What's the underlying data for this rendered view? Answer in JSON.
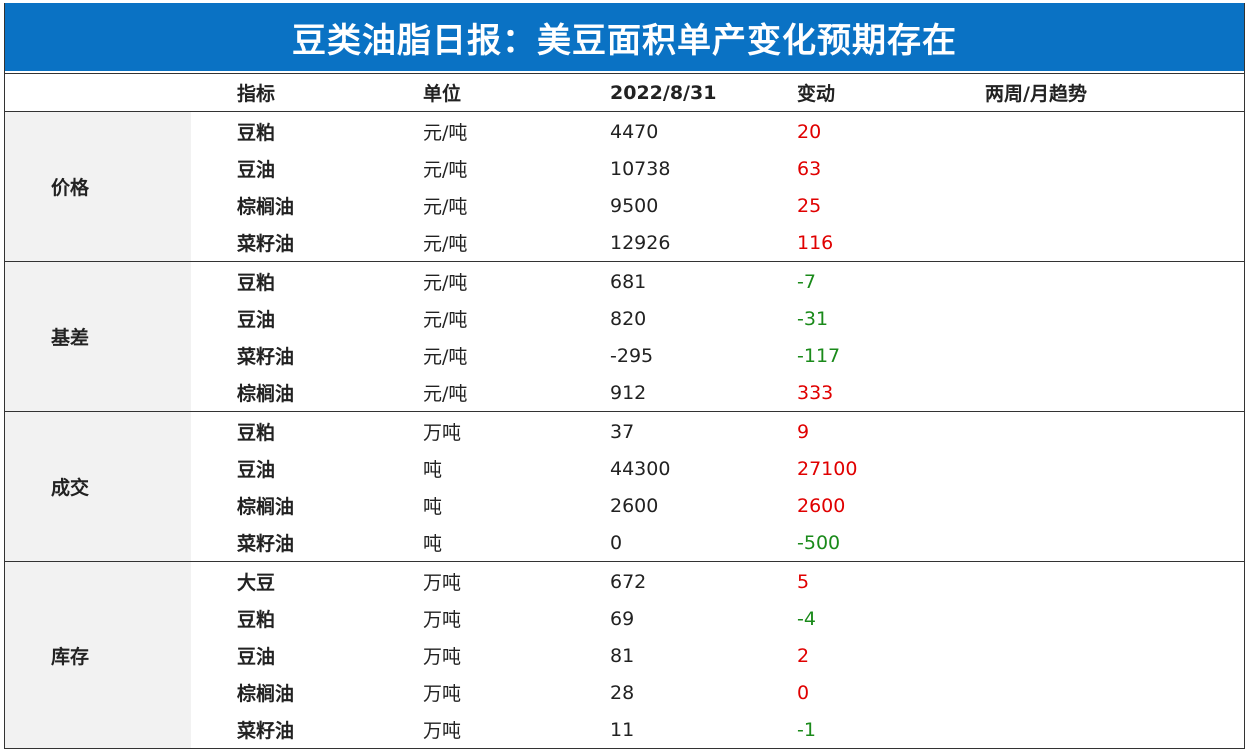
{
  "title": "豆类油脂日报：美豆面积单产变化预期存在",
  "colors": {
    "title_bg": "#0a72c4",
    "up": "#e00000",
    "down": "#1a8a1a",
    "label_bg": "#f2f2f2"
  },
  "headers": {
    "indicator": "指标",
    "unit": "单位",
    "date": "2022/8/31",
    "change": "变动",
    "trend": "两周/月趋势"
  },
  "groups": [
    {
      "label": "价格",
      "rows": [
        {
          "name": "豆粕",
          "unit": "元/吨",
          "value": "4470",
          "change": "20",
          "dir": "up"
        },
        {
          "name": "豆油",
          "unit": "元/吨",
          "value": "10738",
          "change": "63",
          "dir": "up"
        },
        {
          "name": "棕榈油",
          "unit": "元/吨",
          "value": "9500",
          "change": "25",
          "dir": "up"
        },
        {
          "name": "菜籽油",
          "unit": "元/吨",
          "value": "12926",
          "change": "116",
          "dir": "up"
        }
      ]
    },
    {
      "label": "基差",
      "rows": [
        {
          "name": "豆粕",
          "unit": "元/吨",
          "value": "681",
          "change": "-7",
          "dir": "down"
        },
        {
          "name": "豆油",
          "unit": "元/吨",
          "value": "820",
          "change": "-31",
          "dir": "down"
        },
        {
          "name": "菜籽油",
          "unit": "元/吨",
          "value": "-295",
          "change": "-117",
          "dir": "down"
        },
        {
          "name": "棕榈油",
          "unit": "元/吨",
          "value": "912",
          "change": "333",
          "dir": "up"
        }
      ]
    },
    {
      "label": "成交",
      "rows": [
        {
          "name": "豆粕",
          "unit": "万吨",
          "value": "37",
          "change": "9",
          "dir": "up"
        },
        {
          "name": "豆油",
          "unit": "吨",
          "value": "44300",
          "change": "27100",
          "dir": "up"
        },
        {
          "name": "棕榈油",
          "unit": "吨",
          "value": "2600",
          "change": "2600",
          "dir": "up"
        },
        {
          "name": "菜籽油",
          "unit": "吨",
          "value": "0",
          "change": "-500",
          "dir": "down"
        }
      ]
    },
    {
      "label": "库存",
      "rows": [
        {
          "name": "大豆",
          "unit": "万吨",
          "value": "672",
          "change": "5",
          "dir": "up"
        },
        {
          "name": "豆粕",
          "unit": "万吨",
          "value": "69",
          "change": "-4",
          "dir": "down"
        },
        {
          "name": "豆油",
          "unit": "万吨",
          "value": "81",
          "change": "2",
          "dir": "up"
        },
        {
          "name": "棕榈油",
          "unit": "万吨",
          "value": "28",
          "change": "0",
          "dir": "up"
        },
        {
          "name": "菜籽油",
          "unit": "万吨",
          "value": "11",
          "change": "-1",
          "dir": "down"
        }
      ]
    }
  ]
}
